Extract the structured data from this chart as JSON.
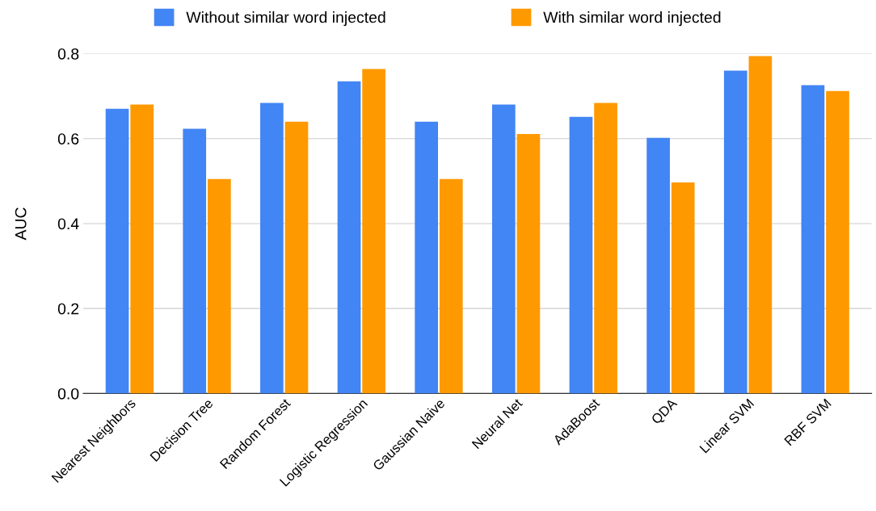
{
  "chart_data": {
    "type": "bar",
    "ylabel": "AUC",
    "categories": [
      "Nearest Neighbors",
      "Decision Tree",
      "Random Forest",
      "Logistic Regression",
      "Gaussian Naive",
      "Neural Net",
      "AdaBoost",
      "QDA",
      "Linear SVM",
      "RBF SVM"
    ],
    "series": [
      {
        "name": "Without similar word injected",
        "color": "#4285f4",
        "values": [
          0.67,
          0.623,
          0.684,
          0.735,
          0.64,
          0.68,
          0.651,
          0.602,
          0.76,
          0.726
        ]
      },
      {
        "name": "With similar word injected",
        "color": "#ff9900",
        "values": [
          0.68,
          0.505,
          0.64,
          0.764,
          0.505,
          0.611,
          0.684,
          0.497,
          0.794,
          0.712
        ]
      }
    ],
    "ylim": [
      0,
      0.8
    ],
    "yticks": [
      {
        "value": 0,
        "label": "0.0"
      },
      0.2,
      0.4,
      0.6,
      0.8
    ],
    "grid": "y",
    "legend": "top"
  }
}
